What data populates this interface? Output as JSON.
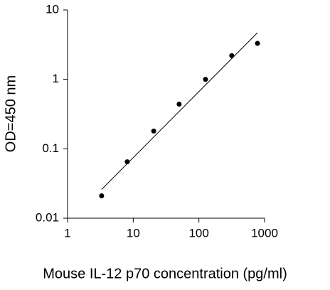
{
  "chart_data": {
    "type": "scatter",
    "x_label": "Mouse IL-12 p70 concentration (pg/ml)",
    "y_label": "OD=450 nm",
    "xscale": "log",
    "yscale": "log",
    "xlim": [
      1,
      1000
    ],
    "ylim": [
      0.01,
      10
    ],
    "xticks": [
      1,
      10,
      100,
      1000
    ],
    "yticks": [
      0.01,
      0.1,
      1,
      10
    ],
    "color": "#000000",
    "x": [
      3.3,
      8.1,
      20.5,
      50,
      126,
      316,
      780
    ],
    "values": [
      0.021,
      0.065,
      0.18,
      0.44,
      1.0,
      2.2,
      3.3
    ],
    "fit_line": {
      "x": [
        3.3,
        780
      ],
      "values": [
        0.026,
        4.7
      ]
    }
  }
}
